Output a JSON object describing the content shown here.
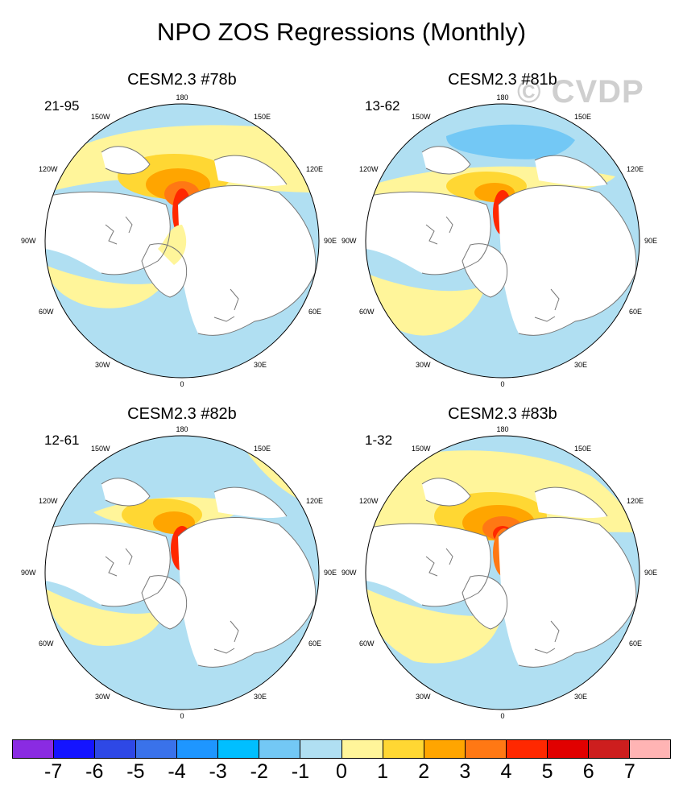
{
  "title": "NPO ZOS Regressions (Monthly)",
  "watermark": "© CVDP",
  "panels": [
    {
      "title": "CESM2.3 #78b",
      "period": "21-95"
    },
    {
      "title": "CESM2.3 #81b",
      "period": "13-62"
    },
    {
      "title": "CESM2.3 #82b",
      "period": "12-61"
    },
    {
      "title": "CESM2.3 #83b",
      "period": "1-32"
    }
  ],
  "longitude_labels": {
    "top": "180",
    "bottom": "0",
    "left_mid": "90W",
    "right_mid": "90E",
    "upper_left": "150W",
    "upper_right": "150E",
    "left_upper": "120W",
    "right_upper": "120E",
    "left_lower": "60W",
    "right_lower": "60E",
    "lower_left": "30W",
    "lower_right": "30E"
  },
  "colorbar": {
    "colors": [
      "#8a2be2",
      "#1414ff",
      "#2e48e6",
      "#3a72ea",
      "#1e96ff",
      "#00bfff",
      "#73c8f5",
      "#b0dff2",
      "#fff59a",
      "#ffd733",
      "#ffa500",
      "#ff7814",
      "#ff2800",
      "#e10000",
      "#cd1e1e",
      "#ffb4b4"
    ],
    "labels": [
      "-7",
      "-6",
      "-5",
      "-4",
      "-3",
      "-2",
      "-1",
      "0",
      "1",
      "2",
      "3",
      "4",
      "5",
      "6",
      "7"
    ]
  },
  "map_colors": {
    "ocean_neutral": "#b0dff2",
    "pos1": "#fff59a",
    "pos2": "#ffd733",
    "pos3": "#ffa500",
    "pos4": "#ff7814",
    "pos5": "#ff2800",
    "pos6": "#e10000",
    "neg2": "#73c8f5",
    "land": "#ffffff",
    "coast": "#777777"
  }
}
